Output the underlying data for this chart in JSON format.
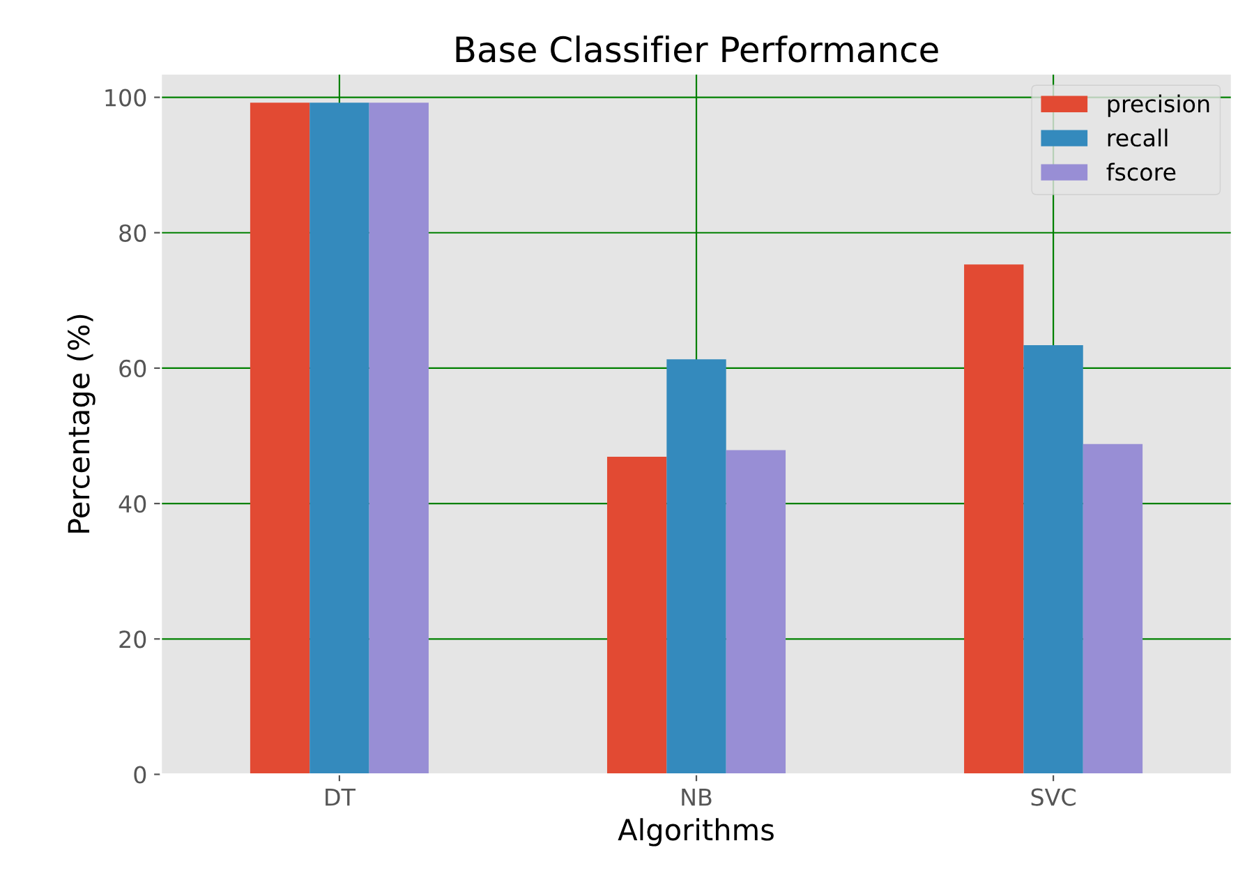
{
  "chart_data": {
    "type": "bar",
    "title": "Base Classifier Performance",
    "xlabel": "Algorithms",
    "ylabel": "Percentage (%)",
    "categories": [
      "DT",
      "NB",
      "SVC"
    ],
    "series": [
      {
        "name": "precision",
        "color": "#e24a33",
        "values": [
          99.2,
          46.9,
          75.3
        ]
      },
      {
        "name": "recall",
        "color": "#348abd",
        "values": [
          99.2,
          61.3,
          63.4
        ]
      },
      {
        "name": "fscore",
        "color": "#988ed5",
        "values": [
          99.2,
          47.9,
          48.8
        ]
      }
    ],
    "ylim": [
      0,
      103.5
    ],
    "yticks": [
      0,
      20,
      40,
      60,
      80,
      100
    ],
    "grid": true,
    "legend": "top right"
  }
}
